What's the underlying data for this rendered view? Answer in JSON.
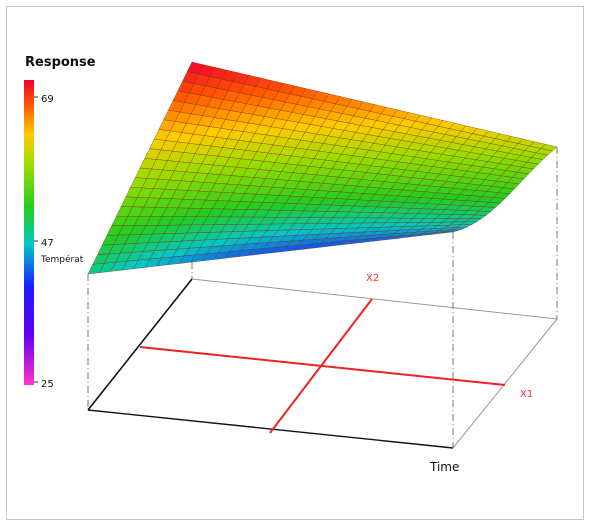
{
  "chart_data": {
    "type": "surface",
    "title": "Response",
    "colorbar": {
      "ticks": [
        "69",
        "47",
        "25"
      ],
      "min": 25,
      "max": 69,
      "label": "Températ",
      "stops": [
        "#ff33cc",
        "#1a1aff",
        "#22cc22",
        "#99dd00",
        "#ffcc00",
        "#ff5500",
        "#ee0033"
      ]
    },
    "axes": {
      "x1": "X1",
      "x2": "X2",
      "time": "Time"
    },
    "surface": {
      "corner_values": {
        "back_left": 69,
        "back_right": 58,
        "front_left": 47,
        "front_right": 43
      },
      "grid_rows": 22,
      "grid_cols": 32
    },
    "colors": {
      "axis_marker": "#ee2222",
      "axis_label": "#ee3333",
      "mesh_line": "#7a2a00"
    }
  }
}
